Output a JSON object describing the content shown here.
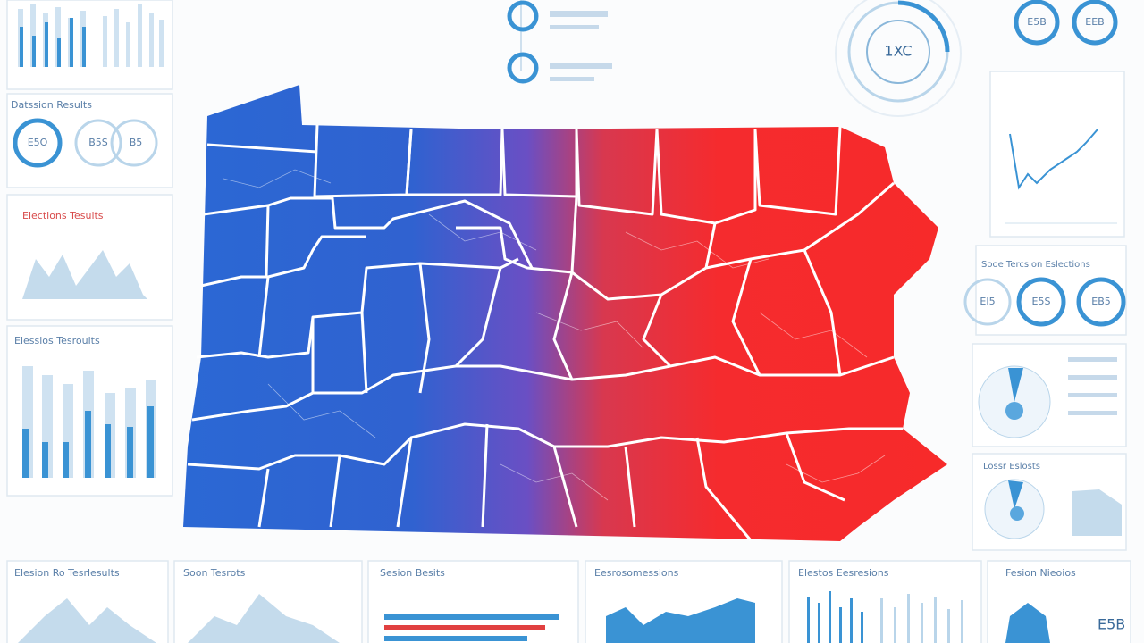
{
  "header": {
    "ring_label": "1XC",
    "top_right_rings": [
      "E5B",
      "EEB"
    ]
  },
  "left_panels": {
    "heading_1": "Datssion Results",
    "rings": [
      "E5O",
      "B5S",
      "B5"
    ],
    "heading_2": "Elections Tesults",
    "heading_3": "Elessios Tesroults"
  },
  "right_panels": {
    "heading_1": "Sooe Tercsion Eslections",
    "rings": [
      "EI5",
      "E5S",
      "EB5"
    ],
    "heading_2": "Lossr Eslosts"
  },
  "bottom_panels": {
    "headings": [
      "Elesion Ro Tesrlesults",
      "Soon Tesrots",
      "Sesion Besits",
      "Eesrosomessions",
      "Elestos Eesresions",
      "Fesion Nieoios"
    ],
    "label": "E5B"
  }
}
